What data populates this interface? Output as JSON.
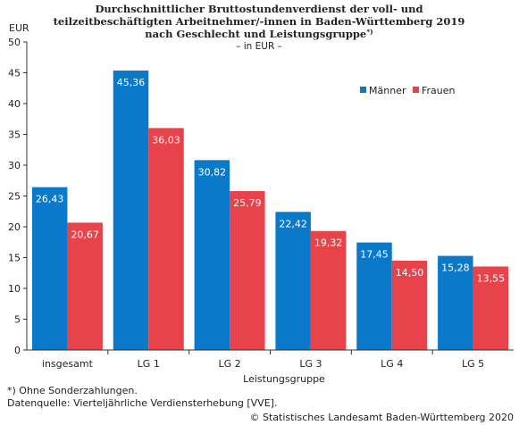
{
  "chart_data": {
    "type": "bar",
    "title_lines": [
      "Durchschnittlicher Bruttostundenverdienst der voll- und",
      "teilzeitbeschäftigten Arbeitnehmer/-innen in Baden-Württemberg 2019",
      "nach Geschlecht und Leistungsgruppe"
    ],
    "title_footnote_mark": "*)",
    "subtitle": "– in EUR –",
    "ylabel": "EUR",
    "xlabel": "Leistungsgruppe",
    "categories": [
      "insgesamt",
      "LG 1",
      "LG 2",
      "LG 3",
      "LG 4",
      "LG 5"
    ],
    "series": [
      {
        "name": "Männer",
        "color": "#0a79c9",
        "values": [
          26.43,
          45.36,
          30.82,
          22.42,
          17.45,
          15.28
        ],
        "labels": [
          "26,43",
          "45,36",
          "30,82",
          "22,42",
          "17,45",
          "15,28"
        ]
      },
      {
        "name": "Frauen",
        "color": "#e8424b",
        "values": [
          20.67,
          36.03,
          25.79,
          19.32,
          14.5,
          13.55
        ],
        "labels": [
          "20,67",
          "36,03",
          "25,79",
          "19,32",
          "14,50",
          "13,55"
        ]
      }
    ],
    "ylim": [
      0,
      50
    ],
    "yticks": [
      0,
      5,
      10,
      15,
      20,
      25,
      30,
      35,
      40,
      45,
      50
    ],
    "grid": false,
    "legend_position": "top-right"
  },
  "footnotes": [
    "*) Ohne Sonderzahlungen.",
    "Datenquelle: Vierteljährliche Verdiensterhebung [VVE]."
  ],
  "copyright": "© Statistisches Landesamt Baden-Württemberg 2020"
}
